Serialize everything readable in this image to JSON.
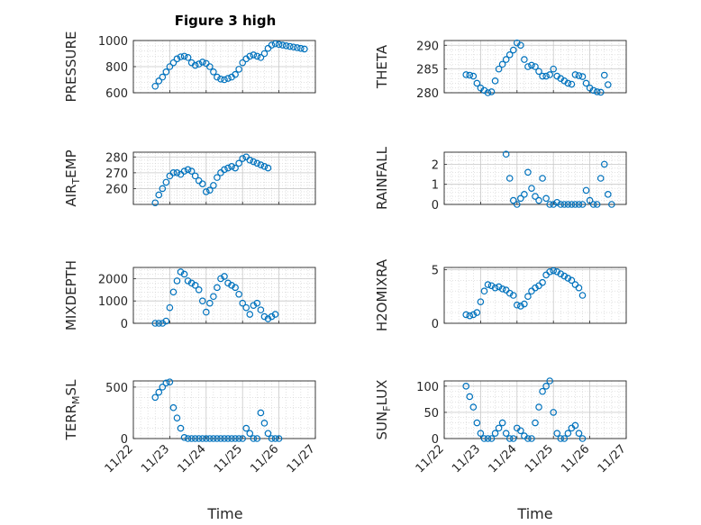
{
  "figure": {
    "title": "Figure 3 high",
    "marker_color": "#0072BD",
    "grid": true,
    "minor_grid": true,
    "xtick_labels": [
      "11/22",
      "11/23",
      "11/24",
      "11/25",
      "11/26",
      "11/27"
    ],
    "xlabel": "Time"
  },
  "chart_data": [
    {
      "type": "scatter",
      "title": "Figure 3 high",
      "ylabel": "PRESSURE",
      "ylim": [
        600,
        1000
      ],
      "yticks": [
        600,
        800,
        1000
      ],
      "xlim": [
        0,
        5
      ],
      "x": [
        0.6,
        0.7,
        0.8,
        0.9,
        1.0,
        1.1,
        1.2,
        1.3,
        1.4,
        1.5,
        1.6,
        1.7,
        1.8,
        1.9,
        2.0,
        2.1,
        2.2,
        2.3,
        2.4,
        2.5,
        2.6,
        2.7,
        2.8,
        2.9,
        3.0,
        3.1,
        3.2,
        3.3,
        3.4,
        3.5,
        3.6,
        3.7,
        3.8,
        3.9,
        4.0,
        4.1,
        4.2,
        4.3,
        4.4,
        4.5,
        4.6,
        4.7
      ],
      "y": [
        650,
        690,
        720,
        760,
        800,
        830,
        860,
        875,
        880,
        870,
        830,
        810,
        820,
        835,
        825,
        800,
        760,
        720,
        705,
        700,
        710,
        720,
        740,
        780,
        830,
        860,
        880,
        890,
        880,
        870,
        900,
        940,
        965,
        975,
        970,
        965,
        960,
        955,
        950,
        945,
        940,
        935
      ]
    },
    {
      "type": "scatter",
      "ylabel": "THETA",
      "ylim": [
        280,
        291
      ],
      "yticks": [
        280,
        285,
        290
      ],
      "xlim": [
        0,
        5
      ],
      "x": [
        0.6,
        0.7,
        0.8,
        0.9,
        1.0,
        1.1,
        1.2,
        1.3,
        1.4,
        1.5,
        1.6,
        1.7,
        1.8,
        1.9,
        2.0,
        2.1,
        2.2,
        2.3,
        2.4,
        2.5,
        2.6,
        2.7,
        2.8,
        2.9,
        3.0,
        3.1,
        3.2,
        3.3,
        3.4,
        3.5,
        3.6,
        3.7,
        3.8,
        3.9,
        4.0,
        4.1,
        4.2,
        4.3,
        4.4,
        4.5
      ],
      "y": [
        283.8,
        283.7,
        283.5,
        282.0,
        281.0,
        280.5,
        280.0,
        280.2,
        282.5,
        285.0,
        286.0,
        287.0,
        288.0,
        289.0,
        290.5,
        290.0,
        287.0,
        285.5,
        285.8,
        285.5,
        284.5,
        283.5,
        283.5,
        283.8,
        285.0,
        283.5,
        283.0,
        282.5,
        282.0,
        281.8,
        283.8,
        283.6,
        283.4,
        282.0,
        281.0,
        280.5,
        280.2,
        280.1,
        283.7,
        281.7
      ]
    },
    {
      "type": "scatter",
      "ylabel": "AIR_TEMP",
      "ylim": [
        250,
        283
      ],
      "yticks": [
        260,
        270,
        280
      ],
      "xlim": [
        0,
        5
      ],
      "x": [
        0.6,
        0.7,
        0.8,
        0.9,
        1.0,
        1.1,
        1.2,
        1.3,
        1.4,
        1.5,
        1.6,
        1.7,
        1.8,
        1.9,
        2.0,
        2.1,
        2.2,
        2.3,
        2.4,
        2.5,
        2.6,
        2.7,
        2.8,
        2.9,
        3.0,
        3.1,
        3.2,
        3.3,
        3.4,
        3.5,
        3.6,
        3.7
      ],
      "y": [
        251,
        256,
        260,
        264,
        268,
        270,
        270,
        269,
        271,
        272,
        271,
        268,
        265,
        263,
        258,
        259,
        262,
        267,
        270,
        272,
        273,
        274,
        273,
        276,
        279,
        280,
        278,
        277,
        276,
        275,
        274,
        273
      ]
    },
    {
      "type": "scatter",
      "ylabel": "RAINFALL",
      "ylim": [
        0,
        2.6
      ],
      "yticks": [
        0,
        1,
        2
      ],
      "xlim": [
        0,
        5
      ],
      "x": [
        1.7,
        1.8,
        1.9,
        2.0,
        2.1,
        2.2,
        2.3,
        2.4,
        2.5,
        2.6,
        2.7,
        2.8,
        2.9,
        3.0,
        3.1,
        3.2,
        3.3,
        3.4,
        3.5,
        3.6,
        3.7,
        3.8,
        3.9,
        4.0,
        4.1,
        4.2,
        4.3,
        4.4,
        4.5,
        4.6
      ],
      "y": [
        2.5,
        1.3,
        0.2,
        0.0,
        0.3,
        0.5,
        1.6,
        0.8,
        0.4,
        0.2,
        1.3,
        0.3,
        0.0,
        0.0,
        0.1,
        0.0,
        0.0,
        0.0,
        0.0,
        0.0,
        0.0,
        0.0,
        0.7,
        0.2,
        0.0,
        0.0,
        1.3,
        2.0,
        0.5,
        0.0
      ]
    },
    {
      "type": "scatter",
      "ylabel": "MIXDEPTH",
      "ylim": [
        0,
        2500
      ],
      "yticks": [
        0,
        1000,
        2000
      ],
      "xlim": [
        0,
        5
      ],
      "x": [
        0.6,
        0.7,
        0.8,
        0.9,
        1.0,
        1.1,
        1.2,
        1.3,
        1.4,
        1.5,
        1.6,
        1.7,
        1.8,
        1.9,
        2.0,
        2.1,
        2.2,
        2.3,
        2.4,
        2.5,
        2.6,
        2.7,
        2.8,
        2.9,
        3.0,
        3.1,
        3.2,
        3.3,
        3.4,
        3.5,
        3.6,
        3.7,
        3.8,
        3.9
      ],
      "y": [
        0,
        0,
        0,
        100,
        700,
        1400,
        1900,
        2300,
        2200,
        1900,
        1800,
        1700,
        1500,
        1000,
        500,
        900,
        1200,
        1600,
        2000,
        2100,
        1800,
        1700,
        1600,
        1300,
        900,
        700,
        400,
        800,
        900,
        600,
        300,
        200,
        300,
        400
      ]
    },
    {
      "type": "scatter",
      "ylabel": "H2OMIXRA",
      "ylim": [
        0,
        5.2
      ],
      "yticks": [
        0,
        5
      ],
      "xlim": [
        0,
        5
      ],
      "x": [
        0.6,
        0.7,
        0.8,
        0.9,
        1.0,
        1.1,
        1.2,
        1.3,
        1.4,
        1.5,
        1.6,
        1.7,
        1.8,
        1.9,
        2.0,
        2.1,
        2.2,
        2.3,
        2.4,
        2.5,
        2.6,
        2.7,
        2.8,
        2.9,
        3.0,
        3.1,
        3.2,
        3.3,
        3.4,
        3.5,
        3.6,
        3.7,
        3.8
      ],
      "y": [
        0.8,
        0.7,
        0.8,
        1.0,
        2.0,
        3.0,
        3.6,
        3.5,
        3.3,
        3.4,
        3.2,
        3.1,
        2.8,
        2.6,
        1.7,
        1.6,
        1.8,
        2.5,
        3.0,
        3.3,
        3.5,
        3.8,
        4.5,
        4.8,
        4.9,
        4.8,
        4.6,
        4.4,
        4.2,
        4.0,
        3.6,
        3.3,
        2.6
      ]
    },
    {
      "type": "scatter",
      "ylabel": "TERR_MSL",
      "ylim": [
        0,
        560
      ],
      "yticks": [
        0,
        500
      ],
      "xlim": [
        0,
        5
      ],
      "x": [
        0.6,
        0.7,
        0.8,
        0.9,
        1.0,
        1.1,
        1.2,
        1.3,
        1.4,
        1.5,
        1.6,
        1.7,
        1.8,
        1.9,
        2.0,
        2.1,
        2.2,
        2.3,
        2.4,
        2.5,
        2.6,
        2.7,
        2.8,
        2.9,
        3.0,
        3.1,
        3.2,
        3.3,
        3.4,
        3.5,
        3.6,
        3.7,
        3.8,
        3.9,
        4.0
      ],
      "y": [
        400,
        450,
        500,
        540,
        550,
        300,
        200,
        100,
        10,
        0,
        0,
        0,
        0,
        0,
        0,
        0,
        0,
        0,
        0,
        0,
        0,
        0,
        0,
        0,
        0,
        100,
        50,
        0,
        0,
        250,
        150,
        50,
        0,
        0,
        0
      ]
    },
    {
      "type": "scatter",
      "ylabel": "SUN_FLUX",
      "ylim": [
        0,
        110
      ],
      "yticks": [
        0,
        50,
        100
      ],
      "xlim": [
        0,
        5
      ],
      "x": [
        0.6,
        0.7,
        0.8,
        0.9,
        1.0,
        1.1,
        1.2,
        1.3,
        1.4,
        1.5,
        1.6,
        1.7,
        1.8,
        1.9,
        2.0,
        2.1,
        2.2,
        2.3,
        2.4,
        2.5,
        2.6,
        2.7,
        2.8,
        2.9,
        3.0,
        3.1,
        3.2,
        3.3,
        3.4,
        3.5,
        3.6,
        3.7,
        3.8
      ],
      "y": [
        100,
        80,
        60,
        30,
        10,
        0,
        0,
        0,
        10,
        20,
        30,
        10,
        0,
        0,
        20,
        15,
        5,
        0,
        0,
        30,
        60,
        90,
        100,
        110,
        50,
        10,
        0,
        0,
        10,
        20,
        25,
        10,
        0
      ]
    }
  ]
}
